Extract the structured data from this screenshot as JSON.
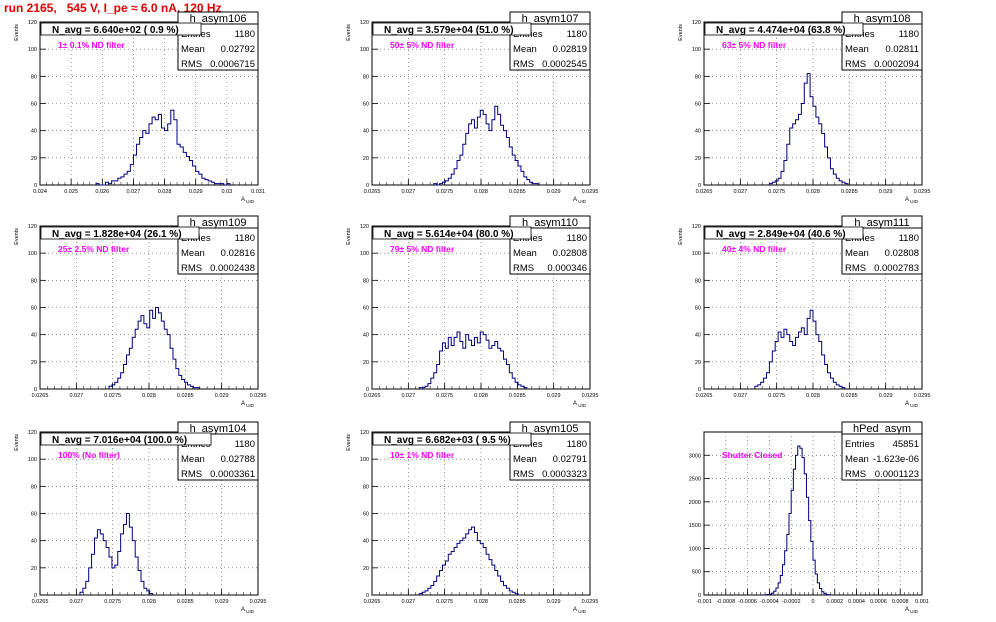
{
  "title": "run 2165,   545 V, I_pe ≈ 6.0 nA, 120 Hz",
  "chart_data": [
    {
      "type": "bar",
      "name": "h_asym106",
      "nlabel": "N_avg = 6.640e+02 ( 0.9 %)",
      "filter": "1± 0.1% ND filter",
      "stats": [
        [
          "Entries",
          "1180"
        ],
        [
          "Mean",
          "0.02792"
        ],
        [
          "RMS",
          "0.0006715"
        ]
      ],
      "xlim": [
        0.024,
        0.031
      ],
      "ylim": [
        0,
        120
      ],
      "xticks": [
        "0.024",
        "0.025",
        "0.026",
        "0.027",
        "0.028",
        "0.029",
        "0.03",
        "0.031"
      ],
      "yticks": [
        0,
        20,
        40,
        60,
        80,
        100,
        120
      ],
      "ylabel": "Events",
      "xlabel": "A_UID",
      "bins": {
        "start": 0.0258,
        "width": 0.0001,
        "counts": [
          1,
          0,
          0,
          2,
          1,
          3,
          3,
          5,
          6,
          8,
          10,
          15,
          22,
          30,
          35,
          40,
          38,
          45,
          50,
          48,
          52,
          42,
          40,
          45,
          55,
          48,
          30,
          28,
          24,
          21,
          18,
          14,
          10,
          8,
          5,
          4,
          3,
          2,
          1,
          1,
          1,
          0,
          1
        ]
      }
    },
    {
      "type": "bar",
      "name": "h_asym107",
      "nlabel": "N_avg = 3.579e+04 (51.0 %)",
      "filter": "50± 5% ND filter",
      "stats": [
        [
          "Entries",
          "1180"
        ],
        [
          "Mean",
          "0.02819"
        ],
        [
          "RMS",
          "0.0002545"
        ]
      ],
      "xlim": [
        0.0265,
        0.0295
      ],
      "ylim": [
        0,
        120
      ],
      "xticks": [
        "0.0265",
        "0.027",
        "0.0275",
        "0.028",
        "0.0285",
        "0.029",
        "0.0295"
      ],
      "yticks": [
        0,
        20,
        40,
        60,
        80,
        100,
        120
      ],
      "ylabel": "Events",
      "xlabel": "A_UID",
      "bins": {
        "start": 0.02735,
        "width": 4e-05,
        "counts": [
          1,
          0,
          1,
          2,
          3,
          5,
          8,
          12,
          18,
          22,
          30,
          38,
          45,
          48,
          42,
          50,
          55,
          52,
          45,
          40,
          48,
          58,
          52,
          44,
          40,
          35,
          28,
          22,
          18,
          14,
          10,
          6,
          4,
          2,
          1,
          1
        ]
      }
    },
    {
      "type": "bar",
      "name": "h_asym108",
      "nlabel": "N_avg = 4.474e+04 (63.8 %)",
      "filter": "63± 5% ND filter",
      "stats": [
        [
          "Entries",
          "1180"
        ],
        [
          "Mean",
          "0.02811"
        ],
        [
          "RMS",
          "0.0002094"
        ]
      ],
      "xlim": [
        0.0265,
        0.0295
      ],
      "ylim": [
        0,
        120
      ],
      "xticks": [
        "0.0265",
        "0.027",
        "0.0275",
        "0.028",
        "0.0285",
        "0.029",
        "0.0295"
      ],
      "yticks": [
        0,
        20,
        40,
        60,
        80,
        100,
        120
      ],
      "ylabel": "Events",
      "xlabel": "A_UID",
      "bins": {
        "start": 0.0274,
        "width": 4e-05,
        "counts": [
          1,
          2,
          3,
          5,
          10,
          18,
          30,
          42,
          45,
          48,
          52,
          60,
          75,
          82,
          65,
          58,
          50,
          45,
          38,
          28,
          20,
          12,
          8,
          5,
          3,
          2,
          1
        ]
      }
    },
    {
      "type": "bar",
      "name": "h_asym109",
      "nlabel": "N_avg = 1.828e+04 (26.1 %)",
      "filter": "25± 2.5% ND filter",
      "stats": [
        [
          "Entries",
          "1180"
        ],
        [
          "Mean",
          "0.02816"
        ],
        [
          "RMS",
          "0.0002438"
        ]
      ],
      "xlim": [
        0.0265,
        0.0295
      ],
      "ylim": [
        0,
        120
      ],
      "xticks": [
        "0.0265",
        "0.027",
        "0.0275",
        "0.028",
        "0.0285",
        "0.029",
        "0.0295"
      ],
      "yticks": [
        0,
        20,
        40,
        60,
        80,
        100,
        120
      ],
      "ylabel": "Events",
      "xlabel": "A_UID",
      "bins": {
        "start": 0.02745,
        "width": 4e-05,
        "counts": [
          2,
          3,
          5,
          8,
          12,
          18,
          25,
          30,
          38,
          44,
          50,
          54,
          48,
          45,
          58,
          52,
          60,
          56,
          50,
          44,
          40,
          30,
          22,
          15,
          10,
          7,
          5,
          3,
          2,
          1,
          1
        ]
      }
    },
    {
      "type": "bar",
      "name": "h_asym110",
      "nlabel": "N_avg = 5.614e+04 (80.0 %)",
      "filter": "79± 5% ND filter",
      "stats": [
        [
          "Entries",
          "1180"
        ],
        [
          "Mean",
          "0.02808"
        ],
        [
          "RMS",
          "0.000346"
        ]
      ],
      "xlim": [
        0.0265,
        0.0295
      ],
      "ylim": [
        0,
        120
      ],
      "xticks": [
        "0.0265",
        "0.027",
        "0.0275",
        "0.028",
        "0.0285",
        "0.029",
        "0.0295"
      ],
      "yticks": [
        0,
        20,
        40,
        60,
        80,
        100,
        120
      ],
      "ylabel": "Events",
      "xlabel": "A_UID",
      "bins": {
        "start": 0.02715,
        "width": 4e-05,
        "counts": [
          1,
          1,
          2,
          4,
          8,
          12,
          18,
          28,
          34,
          30,
          38,
          32,
          38,
          42,
          35,
          30,
          40,
          36,
          32,
          38,
          34,
          42,
          40,
          36,
          30,
          32,
          35,
          30,
          28,
          22,
          18,
          12,
          8,
          5,
          3,
          2,
          1
        ]
      }
    },
    {
      "type": "bar",
      "name": "h_asym111",
      "nlabel": "N_avg = 2.849e+04 (40.6 %)",
      "filter": "40± 4% ND filter",
      "stats": [
        [
          "Entries",
          "1180"
        ],
        [
          "Mean",
          "0.02808"
        ],
        [
          "RMS",
          "0.0002783"
        ]
      ],
      "xlim": [
        0.0265,
        0.0295
      ],
      "ylim": [
        0,
        120
      ],
      "xticks": [
        "0.0265",
        "0.027",
        "0.0275",
        "0.028",
        "0.0285",
        "0.029",
        "0.0295"
      ],
      "yticks": [
        0,
        20,
        40,
        60,
        80,
        100,
        120
      ],
      "ylabel": "Events",
      "xlabel": "A_UID",
      "bins": {
        "start": 0.0272,
        "width": 4e-05,
        "counts": [
          2,
          3,
          5,
          8,
          12,
          20,
          28,
          35,
          42,
          38,
          44,
          40,
          35,
          32,
          38,
          42,
          45,
          40,
          52,
          58,
          50,
          40,
          35,
          25,
          18,
          12,
          8,
          5,
          3,
          2,
          1
        ]
      }
    },
    {
      "type": "bar",
      "name": "h_asym104",
      "nlabel": "N_avg = 7.016e+04 (100.0 %)",
      "filter": "100% (No filter)",
      "stats": [
        [
          "Entries",
          "1180"
        ],
        [
          "Mean",
          "0.02788"
        ],
        [
          "RMS",
          "0.0003361"
        ]
      ],
      "xlim": [
        0.0265,
        0.0295
      ],
      "ylim": [
        0,
        120
      ],
      "xticks": [
        "0.0265",
        "0.027",
        "0.0275",
        "0.028",
        "0.0285",
        "0.029",
        "0.0295"
      ],
      "yticks": [
        0,
        20,
        40,
        60,
        80,
        100,
        120
      ],
      "ylabel": "Events",
      "xlabel": "A_UID",
      "bins": {
        "start": 0.02705,
        "width": 4e-05,
        "counts": [
          2,
          5,
          10,
          20,
          30,
          42,
          48,
          45,
          40,
          35,
          28,
          20,
          22,
          32,
          45,
          52,
          60,
          50,
          40,
          28,
          18,
          10,
          5,
          3,
          1
        ]
      }
    },
    {
      "type": "bar",
      "name": "h_asym105",
      "nlabel": "N_avg = 6.682e+03 ( 9.5 %)",
      "filter": "10± 1% ND filter",
      "stats": [
        [
          "Entries",
          "1180"
        ],
        [
          "Mean",
          "0.02791"
        ],
        [
          "RMS",
          "0.0003323"
        ]
      ],
      "xlim": [
        0.0265,
        0.0295
      ],
      "ylim": [
        0,
        120
      ],
      "xticks": [
        "0.0265",
        "0.027",
        "0.0275",
        "0.028",
        "0.0285",
        "0.029",
        "0.0295"
      ],
      "yticks": [
        0,
        20,
        40,
        60,
        80,
        100,
        120
      ],
      "ylabel": "Events",
      "xlabel": "A_UID",
      "bins": {
        "start": 0.02715,
        "width": 4e-05,
        "counts": [
          1,
          2,
          3,
          5,
          7,
          10,
          14,
          18,
          22,
          25,
          30,
          32,
          35,
          38,
          40,
          42,
          45,
          48,
          50,
          46,
          40,
          38,
          35,
          30,
          26,
          22,
          18,
          14,
          10,
          7,
          5,
          3,
          2,
          1
        ]
      }
    },
    {
      "type": "bar",
      "name": "hPed_asym",
      "nlabel": "",
      "filter": "Shutter Closed",
      "stats": [
        [
          "Entries",
          "45851"
        ],
        [
          "Mean",
          "-1.623e-06"
        ],
        [
          "RMS",
          "0.0001123"
        ]
      ],
      "xlim": [
        -0.001,
        0.001
      ],
      "ylim": [
        0,
        3500
      ],
      "xticks": [
        "-0.001",
        "-0.0008",
        "-0.0006",
        "-0.0004",
        "-0.0002",
        "0",
        "0.0002",
        "0.0004",
        "0.0006",
        "0.0008",
        "0.001"
      ],
      "yticks": [
        0,
        500,
        1000,
        1500,
        2000,
        2500,
        3000
      ],
      "ylabel": "",
      "xlabel": "A_UID",
      "bins": {
        "start": -0.00044,
        "width": 2e-05,
        "counts": [
          5,
          10,
          20,
          40,
          80,
          150,
          260,
          420,
          650,
          950,
          1300,
          1750,
          2250,
          2700,
          3000,
          3200,
          3150,
          2950,
          2600,
          2100,
          1600,
          1150,
          750,
          450,
          260,
          140,
          70,
          30,
          12,
          5
        ]
      }
    }
  ]
}
